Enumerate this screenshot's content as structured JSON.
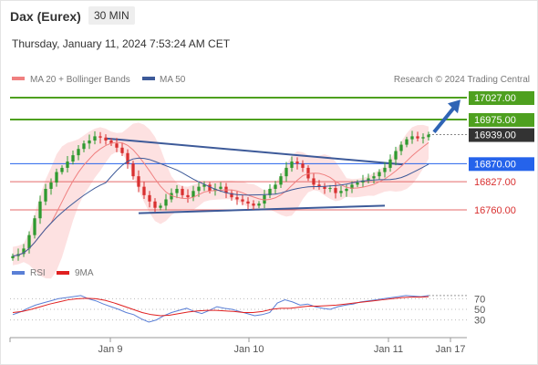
{
  "header": {
    "title": "Dax (Eurex)",
    "timeframe": "30 MIN",
    "datetime": "Thursday, January 11, 2024 7:53:24 AM CET"
  },
  "legend": {
    "ma20": "MA 20 + Bollinger Bands",
    "ma50": "MA 50",
    "credit": "Research © 2024 Trading Central",
    "rsi": "RSI",
    "ma9": "9MA"
  },
  "colors": {
    "candle_up": "#2f9a2f",
    "candle_down": "#d93030",
    "ma20": "#f08080",
    "bollinger_fill": "#fde1e1",
    "ma50": "#3d5a99",
    "green_level": "#4ea01f",
    "blue_level": "#2563eb",
    "red_level": "#e46a6a",
    "last_price": "#333333",
    "trendline": "#3d5a99",
    "arrow": "#2f64b5",
    "rsi": "#5a7fd6",
    "rsi_ma": "#e02020"
  },
  "chart_data": {
    "type": "candlestick",
    "instrument": "Dax (Eurex)",
    "timeframe": "30 MIN",
    "x_ticks": [
      "Jan 9",
      "Jan 10",
      "Jan 11",
      "Jan 17"
    ],
    "y_price_range": [
      16620,
      17080
    ],
    "levels": [
      {
        "value": 17027.0,
        "label": "17027.00",
        "style": "resistance"
      },
      {
        "value": 16975.0,
        "label": "16975.00",
        "style": "resistance"
      },
      {
        "value": 16939.0,
        "label": "16939.00",
        "style": "last"
      },
      {
        "value": 16870.0,
        "label": "16870.00",
        "style": "pivot"
      },
      {
        "value": 16827.0,
        "label": "16827.00",
        "style": "support"
      },
      {
        "value": 16760.0,
        "label": "16760.00",
        "style": "support"
      }
    ],
    "closes": [
      16650,
      16655,
      16668,
      16700,
      16740,
      16780,
      16810,
      16825,
      16850,
      16860,
      16875,
      16890,
      16905,
      16918,
      16925,
      16935,
      16932,
      16925,
      16918,
      16908,
      16895,
      16870,
      16840,
      16815,
      16795,
      16780,
      16765,
      16770,
      16785,
      16800,
      16810,
      16795,
      16790,
      16805,
      16815,
      16820,
      16805,
      16810,
      16815,
      16800,
      16790,
      16785,
      16780,
      16775,
      16770,
      16775,
      16795,
      16810,
      16820,
      16840,
      16860,
      16875,
      16870,
      16860,
      16835,
      16820,
      16815,
      16810,
      16812,
      16800,
      16805,
      16810,
      16820,
      16825,
      16830,
      16835,
      16840,
      16850,
      16860,
      16880,
      16900,
      16915,
      16928,
      16935,
      16930,
      16933,
      16939
    ],
    "rsi": {
      "range": [
        0,
        100
      ],
      "ticks": [
        70,
        50,
        30
      ],
      "values": [
        40,
        45,
        52,
        58,
        62,
        66,
        70,
        72,
        74,
        76,
        70,
        66,
        60,
        55,
        50,
        44,
        40,
        32,
        26,
        30,
        38,
        44,
        48,
        52,
        46,
        42,
        48,
        55,
        52,
        50,
        46,
        42,
        38,
        40,
        44,
        62,
        68,
        64,
        58,
        60,
        55,
        52,
        50,
        55,
        58,
        60,
        64,
        66,
        68,
        70,
        72,
        74,
        76,
        75,
        74,
        76
      ],
      "ma9": [
        44,
        46,
        50,
        55,
        60,
        64,
        68,
        70,
        71,
        70,
        67,
        62,
        56,
        50,
        44,
        40,
        38,
        39,
        42,
        45,
        47,
        48,
        48,
        47,
        46,
        44,
        44,
        46,
        50,
        52,
        52,
        54,
        56,
        56,
        57,
        58,
        60,
        62,
        64,
        66,
        68,
        70,
        72,
        73,
        73,
        74
      ]
    }
  }
}
